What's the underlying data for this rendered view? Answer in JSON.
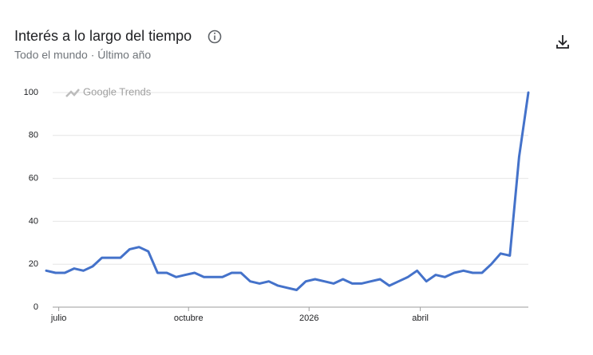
{
  "chart_data": {
    "type": "line",
    "title": "Interés a lo largo del tiempo",
    "subtitle": "Todo el mundo · Último año",
    "watermark": "Google Trends",
    "categories": [
      null,
      "julio",
      null,
      null,
      null,
      null,
      null,
      null,
      null,
      null,
      null,
      null,
      null,
      null,
      null,
      "octubre",
      null,
      null,
      null,
      null,
      null,
      null,
      null,
      null,
      null,
      null,
      null,
      null,
      "2026",
      null,
      null,
      null,
      null,
      null,
      null,
      null,
      null,
      null,
      null,
      null,
      "abril",
      null,
      null,
      null,
      null,
      null,
      null,
      null,
      null,
      null,
      null,
      null,
      null
    ],
    "values": [
      17,
      16,
      16,
      18,
      17,
      19,
      23,
      23,
      23,
      27,
      28,
      26,
      16,
      16,
      14,
      15,
      16,
      14,
      14,
      14,
      16,
      16,
      12,
      11,
      12,
      10,
      9,
      8,
      12,
      13,
      12,
      11,
      13,
      11,
      11,
      12,
      13,
      10,
      12,
      14,
      17,
      12,
      15,
      14,
      16,
      17,
      16,
      16,
      20,
      25,
      24,
      70,
      100
    ],
    "color": "#4472ca",
    "ylim": [
      0,
      100
    ],
    "yticks": [
      0,
      20,
      40,
      60,
      80,
      100
    ],
    "grid": true
  }
}
